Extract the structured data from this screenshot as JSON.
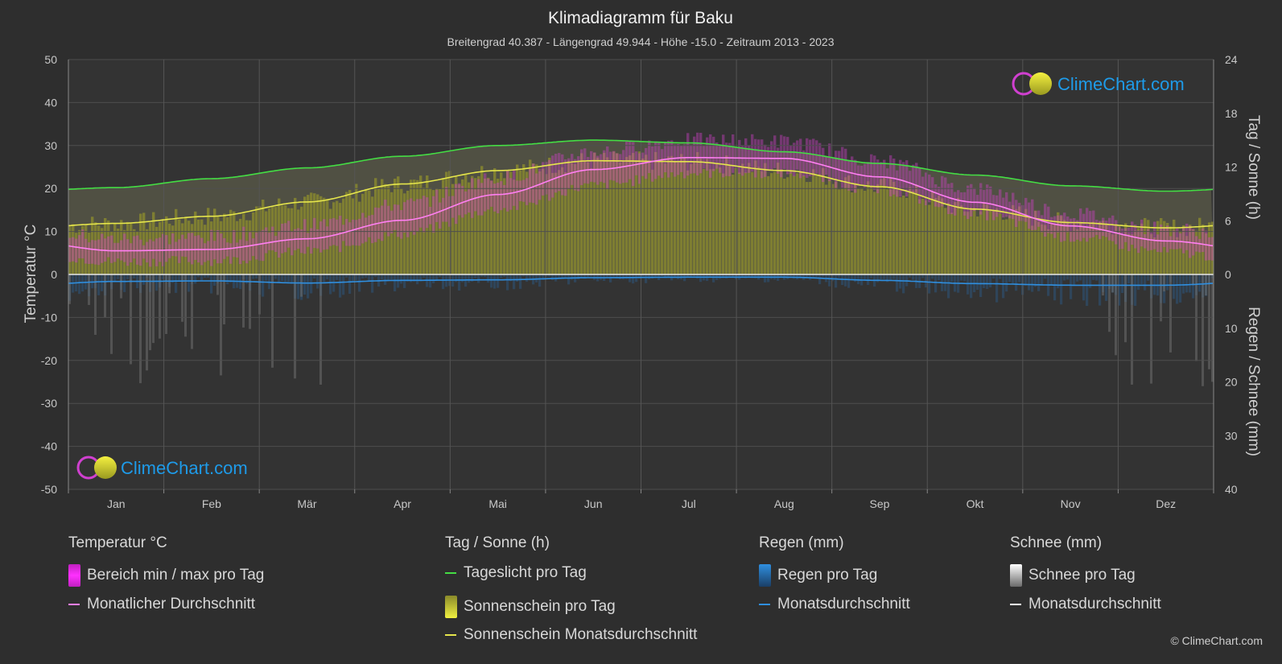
{
  "chart_data": {
    "type": "line",
    "title": "Klimadiagramm für Baku",
    "subtitle": "Breitengrad 40.387 - Längengrad 49.944 - Höhe -15.0 - Zeitraum 2013 - 2023",
    "categories": [
      "Jan",
      "Feb",
      "Mär",
      "Apr",
      "Mai",
      "Jun",
      "Jul",
      "Aug",
      "Sep",
      "Okt",
      "Nov",
      "Dez"
    ],
    "y_left": {
      "label": "Temperatur °C",
      "range": [
        -50,
        50
      ],
      "ticks": [
        "50",
        "40",
        "30",
        "20",
        "10",
        "0",
        "-10",
        "-20",
        "-30",
        "-40",
        "-50"
      ]
    },
    "y_right_top": {
      "label": "Tag / Sonne (h)",
      "range": [
        0,
        24
      ],
      "ticks": [
        "24",
        "18",
        "12",
        "6",
        "0"
      ]
    },
    "y_right_bottom": {
      "label": "Regen / Schnee (mm)",
      "range": [
        0,
        40
      ],
      "ticks": [
        "10",
        "20",
        "30",
        "40"
      ]
    },
    "series": [
      {
        "name": "Tageslicht pro Tag",
        "unit": "h",
        "color": "#44dd44",
        "values": [
          9.7,
          10.7,
          11.9,
          13.2,
          14.4,
          15.0,
          14.7,
          13.7,
          12.4,
          11.1,
          9.9,
          9.3
        ]
      },
      {
        "name": "Sonnenschein Monatsdurchschnitt",
        "unit": "h",
        "color": "#e6e64c",
        "values": [
          5.7,
          6.5,
          8.1,
          10.1,
          11.6,
          12.7,
          12.6,
          11.6,
          9.8,
          7.3,
          5.8,
          5.2
        ]
      },
      {
        "name": "Monatlicher Durchschnitt",
        "unit": "°C",
        "color": "#ff7ff2",
        "values": [
          5.5,
          5.8,
          8.3,
          12.6,
          18.6,
          24.4,
          27.2,
          27.0,
          22.7,
          16.8,
          11.3,
          7.8
        ]
      },
      {
        "name": "Bereich min / max pro Tag",
        "unit": "°C",
        "color": "#e040e0",
        "min": [
          3.0,
          3.2,
          5.3,
          9.4,
          15.2,
          20.7,
          23.6,
          23.6,
          19.5,
          14.0,
          8.6,
          5.2
        ],
        "max": [
          8.2,
          8.7,
          11.4,
          16.3,
          22.5,
          28.7,
          31.3,
          31.0,
          26.4,
          19.9,
          14.2,
          10.6
        ]
      },
      {
        "name": "Regen Monatsdurchschnitt",
        "unit": "mm",
        "color": "#2f8fe0",
        "values": [
          1.3,
          1.2,
          1.6,
          1.1,
          1.0,
          0.6,
          0.5,
          0.5,
          1.1,
          1.7,
          2.0,
          2.0
        ]
      }
    ],
    "grid": true
  },
  "logo": {
    "text": "ClimeChart.com"
  },
  "legend": {
    "groups": [
      {
        "heading": "Temperatur °C",
        "items": [
          {
            "label": "Bereich min / max pro Tag",
            "swatch": "box",
            "color": "#e040e0"
          },
          {
            "label": "Monatlicher Durchschnitt",
            "swatch": "line",
            "color": "#ff7ff2"
          }
        ]
      },
      {
        "heading": "Tag / Sonne (h)",
        "items": [
          {
            "label": "Tageslicht pro Tag",
            "swatch": "line",
            "color": "#44dd44"
          },
          {
            "label": "Sonnenschein pro Tag",
            "swatch": "box",
            "color": "#d6d632"
          },
          {
            "label": "Sonnenschein Monatsdurchschnitt",
            "swatch": "line",
            "color": "#e6e64c"
          }
        ]
      },
      {
        "heading": "Regen (mm)",
        "items": [
          {
            "label": "Regen pro Tag",
            "swatch": "box",
            "color": "#2f8fe0"
          },
          {
            "label": "Monatsdurchschnitt",
            "swatch": "line",
            "color": "#2f8fe0"
          }
        ]
      },
      {
        "heading": "Schnee (mm)",
        "items": [
          {
            "label": "Schnee pro Tag",
            "swatch": "box",
            "color": "#e8e8e8"
          },
          {
            "label": "Monatsdurchschnitt",
            "swatch": "line",
            "color": "#ffffff"
          }
        ]
      }
    ]
  },
  "copyright": "© ClimeChart.com"
}
